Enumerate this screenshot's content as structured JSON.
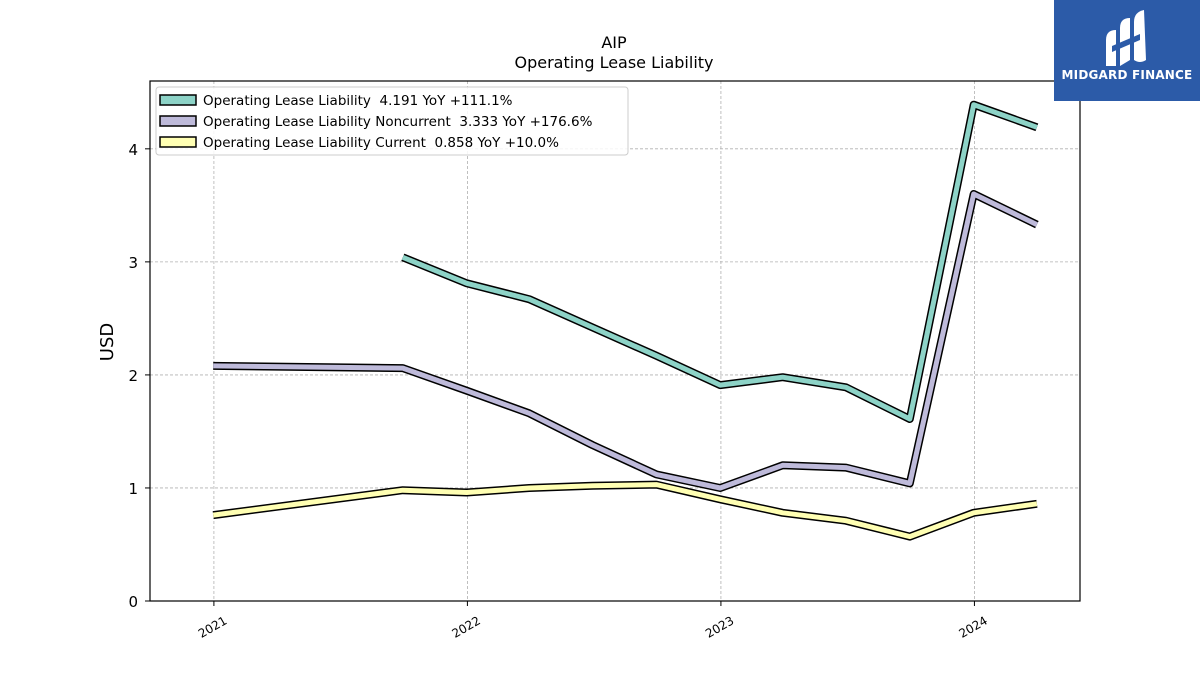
{
  "chart_data": {
    "type": "line",
    "title": "AIP",
    "subtitle": "Operating Lease Liability",
    "xlabel": "",
    "ylabel": "USD",
    "ylim": [
      0,
      4.6
    ],
    "yticks": [
      0,
      1,
      2,
      3,
      4
    ],
    "xticks": [
      "2021",
      "2022",
      "2023",
      "2024"
    ],
    "grid": true,
    "legend_position": "top-left",
    "series": [
      {
        "name": "Operating Lease Liability  4.191 YoY +111.1%",
        "color": "#8dd3c7",
        "x": [
          "2021-09-30",
          "2021-12-31",
          "2022-03-31",
          "2022-06-30",
          "2022-09-30",
          "2022-12-31",
          "2023-03-31",
          "2023-06-30",
          "2023-09-30",
          "2023-12-31",
          "2024-03-31"
        ],
        "values": [
          3.04,
          2.81,
          2.67,
          2.42,
          2.17,
          1.91,
          1.98,
          1.89,
          1.61,
          4.39,
          4.19
        ]
      },
      {
        "name": "Operating Lease Liability Noncurrent  3.333 YoY +176.6%",
        "color": "#bebada",
        "x": [
          "2020-12-31",
          "2021-09-30",
          "2021-12-31",
          "2022-03-31",
          "2022-06-30",
          "2022-09-30",
          "2022-12-31",
          "2023-03-31",
          "2023-06-30",
          "2023-09-30",
          "2023-12-31",
          "2024-03-31"
        ],
        "values": [
          2.08,
          2.06,
          1.86,
          1.66,
          1.38,
          1.12,
          1.0,
          1.2,
          1.18,
          1.04,
          3.6,
          3.33
        ]
      },
      {
        "name": "Operating Lease Liability Current  0.858 YoY +10.0%",
        "color": "#ffffb3",
        "x": [
          "2020-12-31",
          "2021-09-30",
          "2021-12-31",
          "2022-03-31",
          "2022-06-30",
          "2022-09-30",
          "2022-12-31",
          "2023-03-31",
          "2023-06-30",
          "2023-09-30",
          "2023-12-31",
          "2024-03-31"
        ],
        "values": [
          0.76,
          0.98,
          0.96,
          1.0,
          1.02,
          1.03,
          0.9,
          0.78,
          0.71,
          0.57,
          0.78,
          0.86
        ]
      }
    ]
  },
  "logo": {
    "text": "MIDGARD FINANCE",
    "background": "#2c5ba8"
  }
}
